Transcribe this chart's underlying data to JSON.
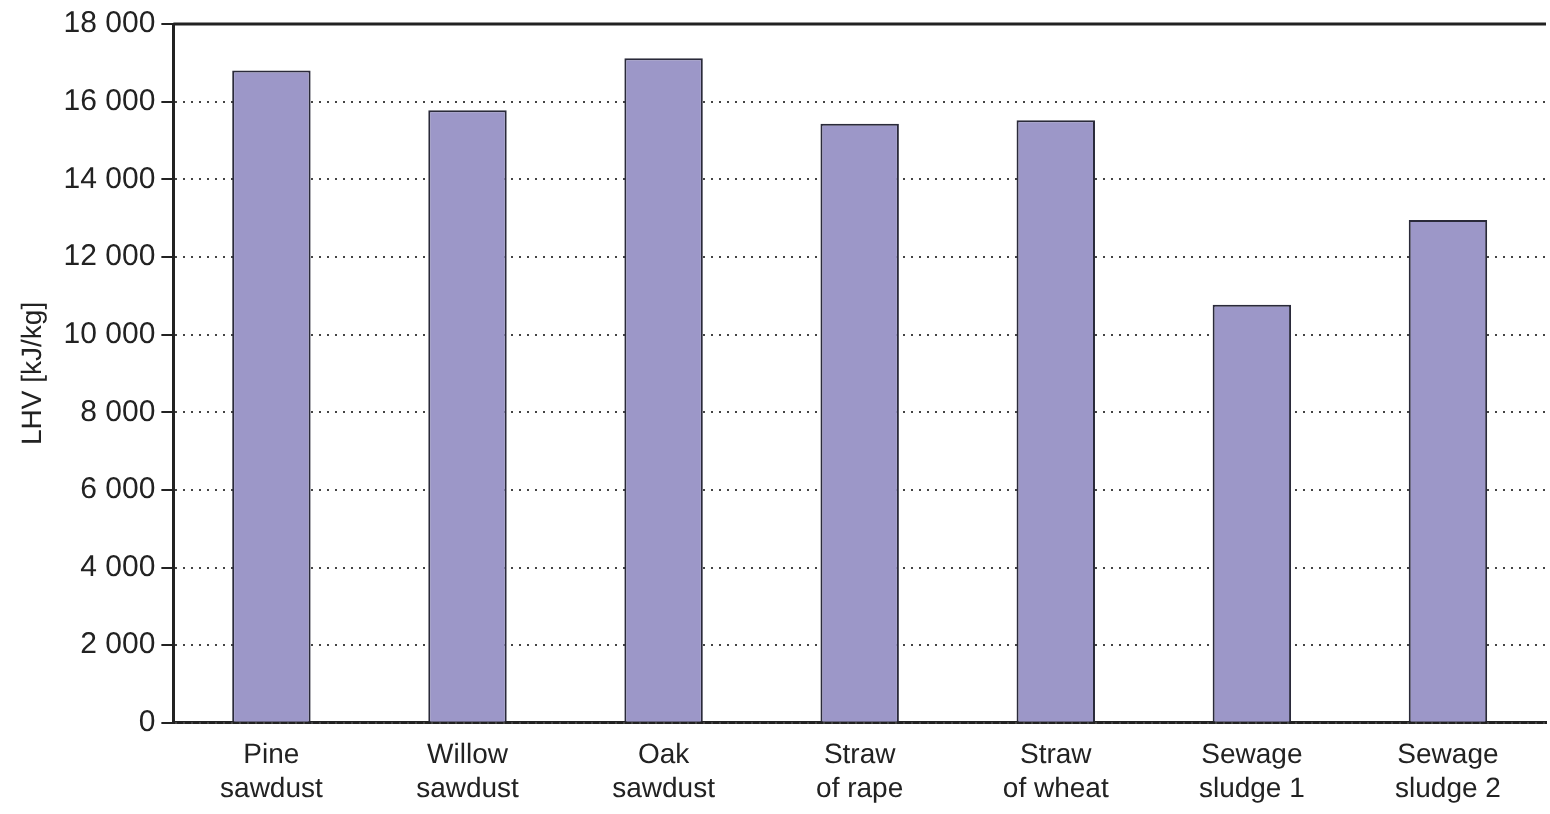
{
  "chart_data": {
    "type": "bar",
    "ylabel": "LHV [kJ/kg]",
    "categories": [
      "Pine\nsawdust",
      "Willow\nsawdust",
      "Oak\nsawdust",
      "Straw\nof rape",
      "Straw\nof wheat",
      "Sewage\nsludge 1",
      "Sewage\nsludge 2"
    ],
    "values": [
      16800,
      15780,
      17120,
      15430,
      15520,
      10770,
      12950
    ],
    "color": "#9c97c8",
    "ylim": [
      0,
      18000
    ],
    "yticks": [
      {
        "value": 0,
        "label": "0"
      },
      {
        "value": 2000,
        "label": "2 000"
      },
      {
        "value": 4000,
        "label": "4 000"
      },
      {
        "value": 6000,
        "label": "6 000"
      },
      {
        "value": 8000,
        "label": "8 000"
      },
      {
        "value": 10000,
        "label": "10 000"
      },
      {
        "value": 12000,
        "label": "12 000"
      },
      {
        "value": 14000,
        "label": "14 000"
      },
      {
        "value": 16000,
        "label": "16 000"
      },
      {
        "value": 18000,
        "label": "18 000"
      }
    ],
    "grid": "y",
    "legend": false
  }
}
